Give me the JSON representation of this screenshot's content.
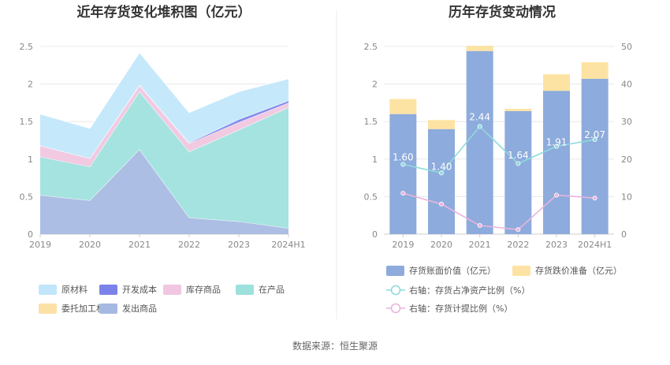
{
  "footer": {
    "source": "数据来源：恒生聚源"
  },
  "colors": {
    "raw_material": "#c1e6fb",
    "dev_cost": "#7b82ea",
    "inventory_goods": "#f0c6e0",
    "wip": "#9de1dd",
    "outsourced": "#fde0a6",
    "shipped": "#a6b9e2",
    "book_value": "#8dabdc",
    "impairment": "#fde3a3",
    "ratio_net_assets": "#8fd9dc",
    "ratio_provision": "#eab4dd"
  },
  "chart_data": [
    {
      "type": "area",
      "title": "近年存货变化堆积图（亿元）",
      "categories": [
        "2019",
        "2020",
        "2021",
        "2022",
        "2023",
        "2024H1"
      ],
      "ylim": [
        0,
        2.5
      ],
      "yticks": [
        "0",
        "0.5",
        "1",
        "1.5",
        "2",
        "2.5"
      ],
      "grid": true,
      "legend_position": "bottom",
      "series": [
        {
          "name": "发出商品",
          "color_key": "shipped",
          "values": [
            0.52,
            0.45,
            1.13,
            0.22,
            0.17,
            0.08
          ]
        },
        {
          "name": "在产品",
          "color_key": "wip",
          "values": [
            0.51,
            0.45,
            0.77,
            0.88,
            1.22,
            1.61
          ]
        },
        {
          "name": "库存商品",
          "color_key": "inventory_goods",
          "values": [
            0.15,
            0.11,
            0.08,
            0.11,
            0.1,
            0.06
          ]
        },
        {
          "name": "开发成本",
          "color_key": "dev_cost",
          "values": [
            0,
            0,
            0.01,
            0.01,
            0.04,
            0.03
          ]
        },
        {
          "name": "委托加工材料",
          "color_key": "outsourced",
          "values": [
            0,
            0,
            0,
            0,
            0,
            0
          ]
        },
        {
          "name": "原材料",
          "color_key": "raw_material",
          "values": [
            0.42,
            0.4,
            0.43,
            0.4,
            0.37,
            0.29
          ]
        }
      ],
      "legend": [
        {
          "name": "原材料",
          "color_key": "raw_material"
        },
        {
          "name": "开发成本",
          "color_key": "dev_cost"
        },
        {
          "name": "库存商品",
          "color_key": "inventory_goods"
        },
        {
          "name": "在产品",
          "color_key": "wip"
        },
        {
          "name": "委托加工材料",
          "color_key": "outsourced"
        },
        {
          "name": "发出商品",
          "color_key": "shipped"
        }
      ]
    },
    {
      "type": "bar",
      "title": "历年存货变动情况",
      "categories": [
        "2019",
        "2020",
        "2021",
        "2022",
        "2023",
        "2024H1"
      ],
      "ylim": [
        0,
        2.5
      ],
      "yticks": [
        "0",
        "0.5",
        "1",
        "1.5",
        "2",
        "2.5"
      ],
      "y2lim": [
        0,
        50
      ],
      "y2ticks": [
        "0",
        "10",
        "20",
        "30",
        "40",
        "50"
      ],
      "grid": true,
      "legend_position": "bottom",
      "series": [
        {
          "name": "存货账面价值（亿元）",
          "kind": "bar",
          "stack": "a",
          "color_key": "book_value",
          "values": [
            1.6,
            1.4,
            2.44,
            1.64,
            1.91,
            2.07
          ],
          "labels": [
            "1.60",
            "1.40",
            "2.44",
            "1.64",
            "1.91",
            "2.07"
          ]
        },
        {
          "name": "存货跌价准备（亿元）",
          "kind": "bar",
          "stack": "a",
          "color_key": "impairment",
          "values": [
            0.2,
            0.12,
            0.07,
            0.03,
            0.22,
            0.22
          ]
        },
        {
          "name": "右轴：存货占净资产比例（%）",
          "kind": "line",
          "axis": "right",
          "color_key": "ratio_net_assets",
          "values": [
            18.6,
            16.3,
            28.7,
            18.8,
            23.4,
            25.2
          ]
        },
        {
          "name": "右轴：存货计提比例（%）",
          "kind": "line",
          "axis": "right",
          "color_key": "ratio_provision",
          "values": [
            10.9,
            8.0,
            2.3,
            1.2,
            10.4,
            9.6
          ]
        }
      ]
    }
  ]
}
